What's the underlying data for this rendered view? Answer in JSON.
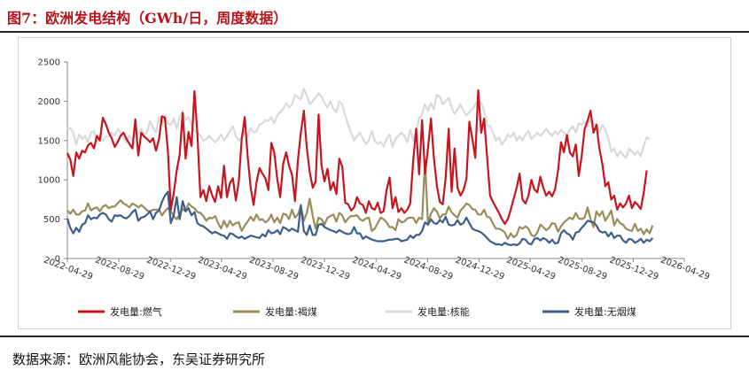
{
  "header": {
    "title": "图7：欧洲发电结构（GWh/日，周度数据）"
  },
  "footer": {
    "source": "数据来源：欧洲风能协会，东吴证券研究所"
  },
  "chart_data": {
    "type": "line",
    "title": "",
    "xlabel": "",
    "ylabel": "",
    "ylim": [
      0,
      2500
    ],
    "yticks": [
      0,
      500,
      1000,
      1500,
      2000,
      2500
    ],
    "xticks": [
      "2022-04-29",
      "2022-08-29",
      "2022-12-29",
      "2023-04-29",
      "2023-08-29",
      "2023-12-29",
      "2024-04-29",
      "2024-08-29",
      "2024-12-29",
      "2025-04-29",
      "2025-08-29",
      "2025-12-29",
      "2026-04-29"
    ],
    "grid": false,
    "legend": "bottom",
    "x_start": "2022-04-29",
    "x_step_weeks": 1,
    "series": [
      {
        "name": "发电量:燃气",
        "color": "#c8141e",
        "values": [
          1340,
          1260,
          1050,
          1350,
          1270,
          1370,
          1350,
          1440,
          1470,
          1400,
          1560,
          1500,
          1790,
          1710,
          1600,
          1530,
          1420,
          1480,
          1560,
          1600,
          1520,
          1460,
          1400,
          1770,
          1310,
          1600,
          1550,
          1520,
          1480,
          1530,
          1370,
          1520,
          1810,
          1790,
          1370,
          620,
          830,
          1120,
          1320,
          1850,
          1270,
          1610,
          1430,
          2130,
          1580,
          780,
          870,
          730,
          920,
          800,
          720,
          920,
          770,
          1180,
          780,
          960,
          1020,
          740,
          980,
          1520,
          1800,
          1300,
          900,
          680,
          970,
          1150,
          1080,
          1020,
          870,
          1470,
          1350,
          1010,
          780,
          1200,
          1350,
          1180,
          1070,
          730,
          1250,
          1600,
          1880,
          1410,
          1100,
          900,
          980,
          1830,
          1180,
          980,
          1140,
          870,
          970,
          820,
          1270,
          1170,
          710,
          690,
          610,
          650,
          780,
          700,
          680,
          580,
          730,
          640,
          620,
          710,
          580,
          600,
          870,
          1030,
          640,
          780,
          590,
          640,
          580,
          620,
          700,
          1250,
          1650,
          1070,
          1760,
          1080,
          1400,
          1780,
          1280,
          930,
          720,
          690,
          1030,
          1650,
          850,
          1400,
          900,
          800,
          870,
          1010,
          1740,
          1520,
          1280,
          2140,
          1600,
          1780,
          1300,
          800,
          720,
          650,
          580,
          500,
          440,
          500,
          620,
          760,
          900,
          1080,
          750,
          700,
          800,
          1000,
          880,
          840,
          1040,
          900,
          800,
          850,
          790,
          880,
          1120,
          1480,
          1350,
          1570,
          1350,
          1300,
          1450,
          1050,
          1300,
          1650,
          1750,
          1880,
          1600,
          1700,
          1400,
          1200,
          920,
          970,
          750,
          800,
          620,
          700,
          650,
          700,
          800,
          640,
          720,
          680,
          630,
          840,
          1120
        ]
      },
      {
        "name": "发电量:褐煤",
        "color": "#9a8c5b",
        "values": [
          610,
          570,
          620,
          560,
          560,
          600,
          610,
          700,
          610,
          640,
          650,
          600,
          660,
          680,
          640,
          660,
          660,
          700,
          740,
          700,
          680,
          650,
          700,
          680,
          650,
          680,
          650,
          610,
          600,
          620,
          620,
          620,
          550,
          600,
          640,
          600,
          540,
          500,
          560,
          630,
          600,
          700,
          660,
          640,
          590,
          580,
          540,
          480,
          520,
          510,
          540,
          450,
          380,
          480,
          400,
          480,
          420,
          450,
          460,
          350,
          420,
          470,
          530,
          480,
          560,
          490,
          500,
          460,
          490,
          560,
          460,
          520,
          450,
          570,
          560,
          500,
          620,
          520,
          560,
          660,
          480,
          580,
          760,
          540,
          380,
          520,
          500,
          430,
          520,
          540,
          560,
          470,
          580,
          550,
          460,
          510,
          540,
          540,
          550,
          500,
          480,
          510,
          520,
          350,
          380,
          450,
          520,
          500,
          460,
          400,
          400,
          360,
          500,
          460,
          470,
          510,
          520,
          520,
          450,
          520,
          500,
          1250,
          450,
          570,
          640,
          600,
          510,
          560,
          560,
          660,
          590,
          550,
          520,
          610,
          650,
          700,
          680,
          630,
          620,
          560,
          560,
          620,
          530,
          520,
          440,
          380,
          380,
          360,
          330,
          250,
          320,
          270,
          300,
          400,
          380,
          410,
          380,
          300,
          280,
          330,
          430,
          400,
          360,
          390,
          450,
          440,
          340,
          410,
          460,
          490,
          520,
          500,
          580,
          510,
          500,
          520,
          650,
          500,
          400,
          600,
          540,
          600,
          480,
          540,
          610,
          420,
          500,
          450,
          430,
          380,
          360,
          350,
          440,
          350,
          380,
          310,
          370,
          320,
          420
        ]
      },
      {
        "name": "发电量:核能",
        "color": "#d9d9d9",
        "values": [
          1650,
          1660,
          1600,
          1450,
          1580,
          1520,
          1560,
          1480,
          1600,
          1620,
          1480,
          1560,
          1500,
          1550,
          1560,
          1600,
          1560,
          1650,
          1600,
          1530,
          1480,
          1560,
          1500,
          1580,
          1600,
          1650,
          1560,
          1610,
          1750,
          1660,
          1600,
          1800,
          1700,
          1820,
          1720,
          1700,
          1780,
          1650,
          1800,
          1880,
          1760,
          1800,
          1700,
          1620,
          1600,
          1560,
          1500,
          1520,
          1560,
          1520,
          1480,
          1520,
          1580,
          1500,
          1560,
          1620,
          1680,
          1560,
          1500,
          1540,
          1600,
          1560,
          1660,
          1600,
          1620,
          1700,
          1720,
          1760,
          1750,
          1800,
          1720,
          1820,
          1860,
          1900,
          1980,
          1920,
          1960,
          2080,
          2050,
          2020,
          2160,
          2080,
          1960,
          2000,
          2050,
          2100,
          2060,
          1980,
          1920,
          2000,
          1900,
          1860,
          2000,
          1960,
          1820,
          1700,
          1600,
          1500,
          1560,
          1600,
          1520,
          1460,
          1500,
          1620,
          1500,
          1460,
          1480,
          1420,
          1520,
          1580,
          1420,
          1520,
          1560,
          1600,
          1560,
          1480,
          1640,
          1500,
          1620,
          1780,
          1840,
          1960,
          1880,
          1980,
          1900,
          2080,
          2060,
          1960,
          2000,
          2040,
          1920,
          1840,
          1900,
          1960,
          1880,
          1820,
          1860,
          1900,
          1960,
          2020,
          1980,
          1880,
          1700,
          1680,
          1600,
          1500,
          1540,
          1450,
          1500,
          1580,
          1540,
          1600,
          1500,
          1560,
          1500,
          1580,
          1620,
          1520,
          1560,
          1600,
          1560,
          1600,
          1650,
          1600,
          1560,
          1620,
          1580,
          1640,
          1600,
          1560,
          1640,
          1680,
          1600,
          1720,
          1700,
          1740,
          1680,
          1760,
          1700,
          1720,
          1600,
          1700,
          1640,
          1520,
          1360,
          1400,
          1300,
          1360,
          1320,
          1280,
          1400,
          1360,
          1320,
          1360,
          1300,
          1440,
          1540,
          1520
        ]
      },
      {
        "name": "发电量:无烟煤",
        "color": "#3b5e8c",
        "values": [
          510,
          390,
          320,
          390,
          340,
          430,
          450,
          550,
          500,
          520,
          510,
          560,
          580,
          560,
          500,
          470,
          550,
          540,
          550,
          520,
          510,
          540,
          590,
          620,
          480,
          520,
          530,
          560,
          600,
          500,
          580,
          610,
          720,
          800,
          850,
          450,
          550,
          780,
          500,
          730,
          600,
          640,
          550,
          590,
          450,
          420,
          410,
          380,
          350,
          320,
          340,
          320,
          300,
          290,
          250,
          320,
          310,
          280,
          260,
          280,
          250,
          270,
          290,
          280,
          270,
          260,
          310,
          280,
          360,
          320,
          330,
          360,
          310,
          400,
          380,
          350,
          380,
          360,
          340,
          680,
          350,
          300,
          420,
          300,
          300,
          430,
          440,
          400,
          380,
          360,
          350,
          330,
          360,
          340,
          320,
          310,
          320,
          400,
          320,
          320,
          250,
          280,
          260,
          240,
          230,
          220,
          220,
          220,
          230,
          240,
          240,
          250,
          250,
          220,
          230,
          240,
          290,
          260,
          300,
          300,
          350,
          460,
          430,
          500,
          450,
          440,
          490,
          460,
          530,
          430,
          420,
          430,
          490,
          430,
          450,
          520,
          450,
          380,
          360,
          350,
          330,
          300,
          260,
          220,
          200,
          180,
          180,
          170,
          200,
          180,
          170,
          180,
          170,
          190,
          250,
          240,
          190,
          180,
          250,
          260,
          230,
          260,
          240,
          200,
          240,
          190,
          200,
          320,
          360,
          320,
          300,
          240,
          330,
          340,
          390,
          430,
          480,
          470,
          460,
          420,
          350,
          330,
          340,
          280,
          330,
          260,
          290,
          290,
          230,
          200,
          250,
          240,
          200,
          220,
          250,
          200,
          240,
          220,
          260
        ]
      }
    ]
  }
}
